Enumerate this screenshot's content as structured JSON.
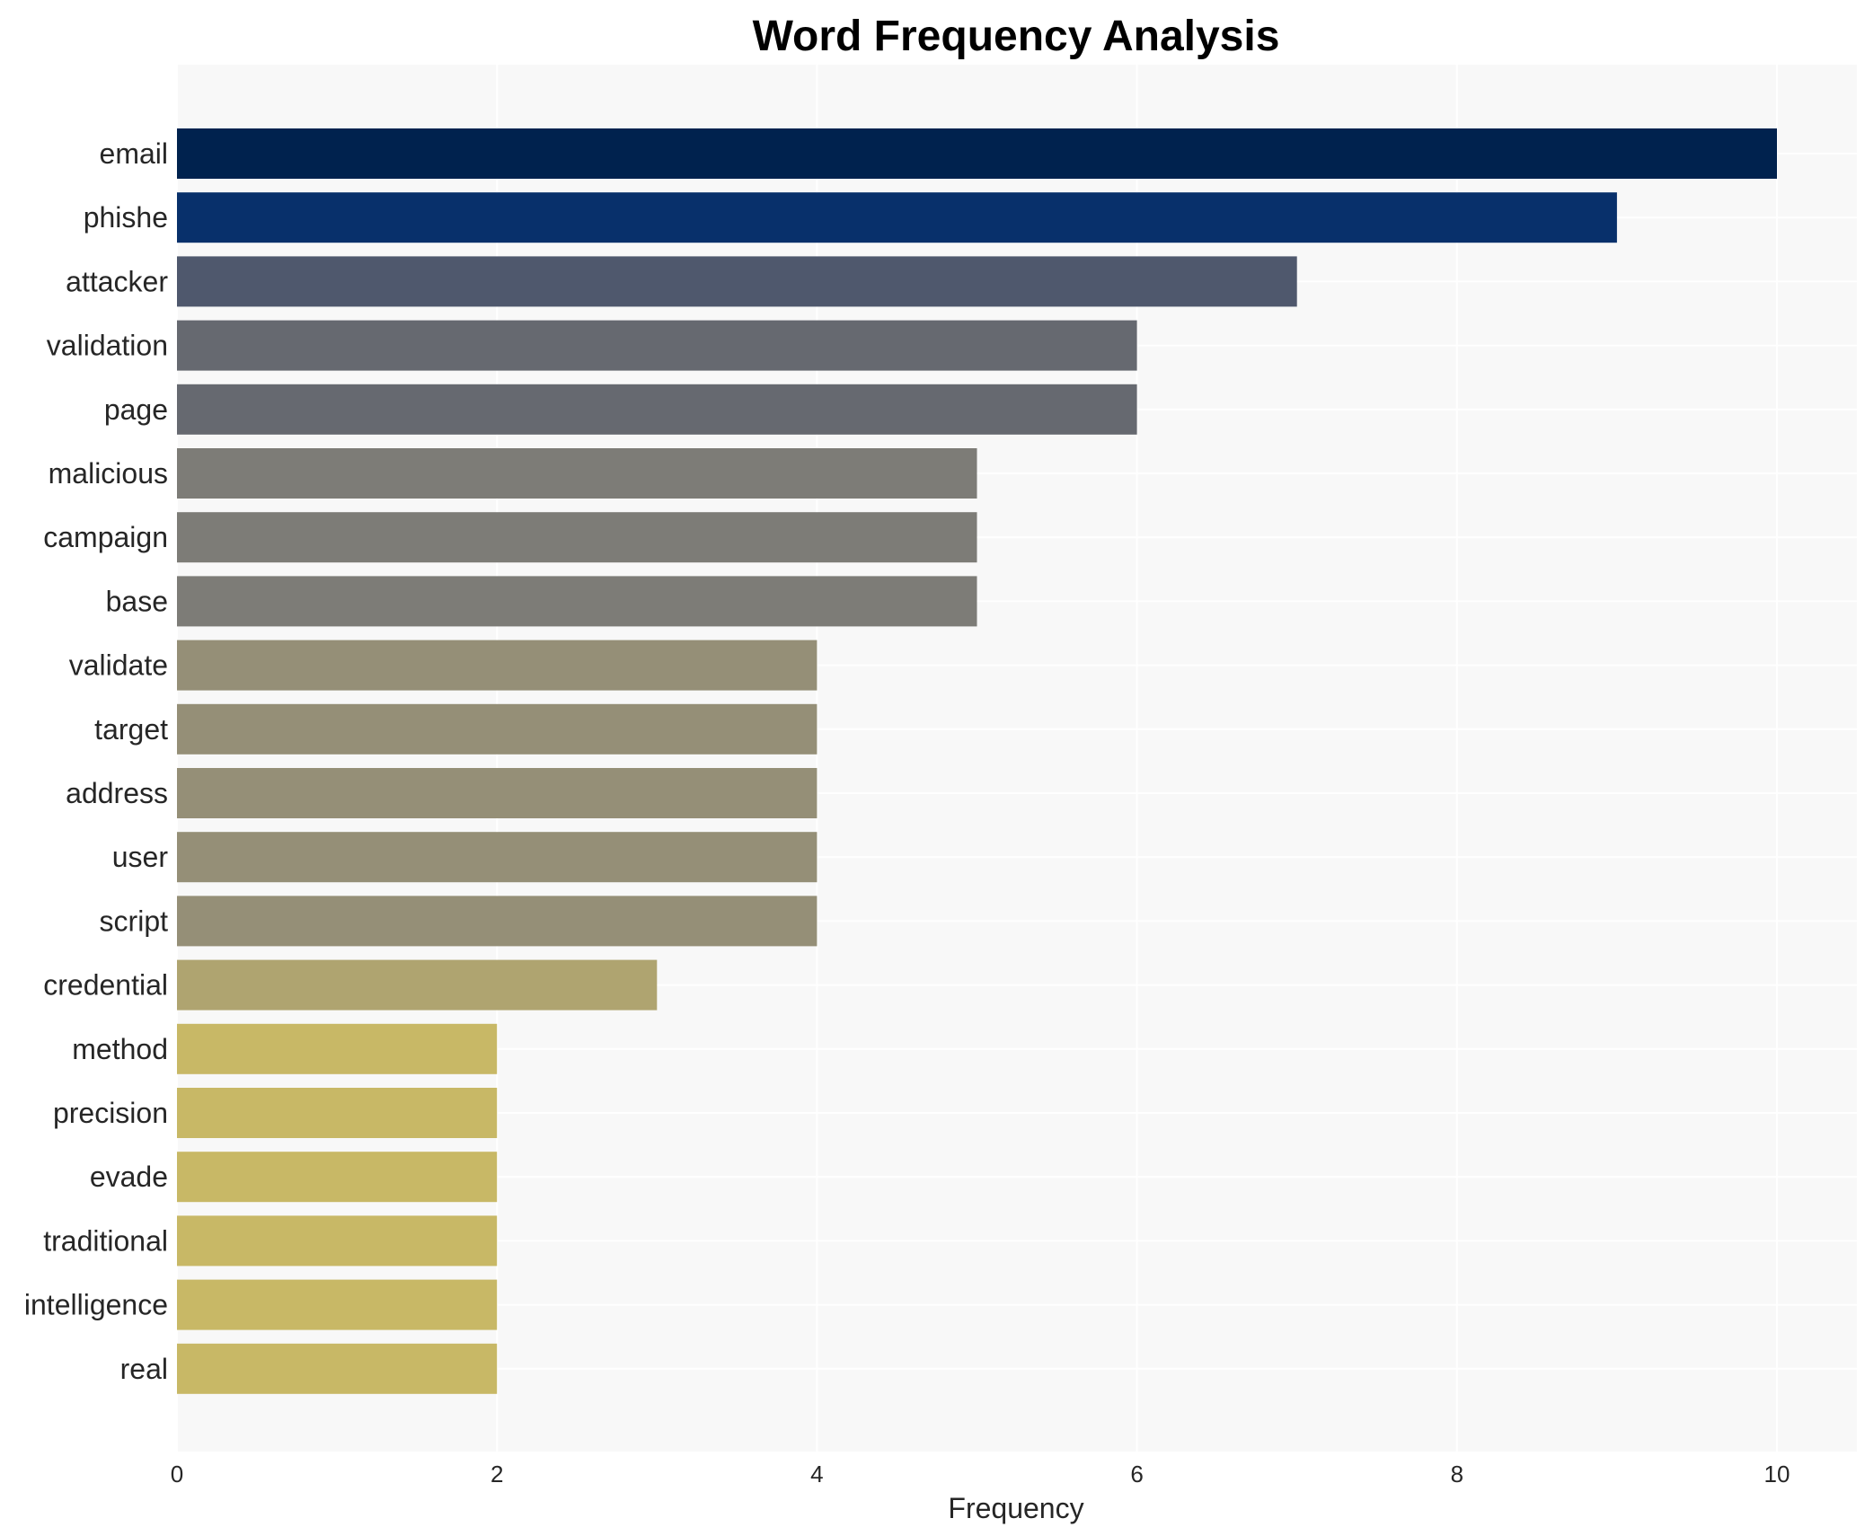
{
  "chart_data": {
    "type": "bar",
    "orientation": "horizontal",
    "title": "Word Frequency Analysis",
    "xlabel": "Frequency",
    "ylabel": "",
    "xlim": [
      0,
      10.5
    ],
    "xticks": [
      0,
      2,
      4,
      6,
      8,
      10
    ],
    "grid": true,
    "background": "#f8f8f8",
    "categories": [
      "email",
      "phishe",
      "attacker",
      "validation",
      "page",
      "malicious",
      "campaign",
      "base",
      "validate",
      "target",
      "address",
      "user",
      "script",
      "credential",
      "method",
      "precision",
      "evade",
      "traditional",
      "intelligence",
      "real"
    ],
    "values": [
      10,
      9,
      7,
      6,
      6,
      5,
      5,
      5,
      4,
      4,
      4,
      4,
      4,
      3,
      2,
      2,
      2,
      2,
      2,
      2
    ],
    "colors": [
      "#00224e",
      "#08306b",
      "#4f586d",
      "#666970",
      "#666970",
      "#7d7c77",
      "#7d7c77",
      "#7d7c77",
      "#958f77",
      "#958f77",
      "#958f77",
      "#958f77",
      "#958f77",
      "#afa470",
      "#c8b866",
      "#c8b866",
      "#c8b866",
      "#c8b866",
      "#c8b866",
      "#c8b866"
    ]
  }
}
